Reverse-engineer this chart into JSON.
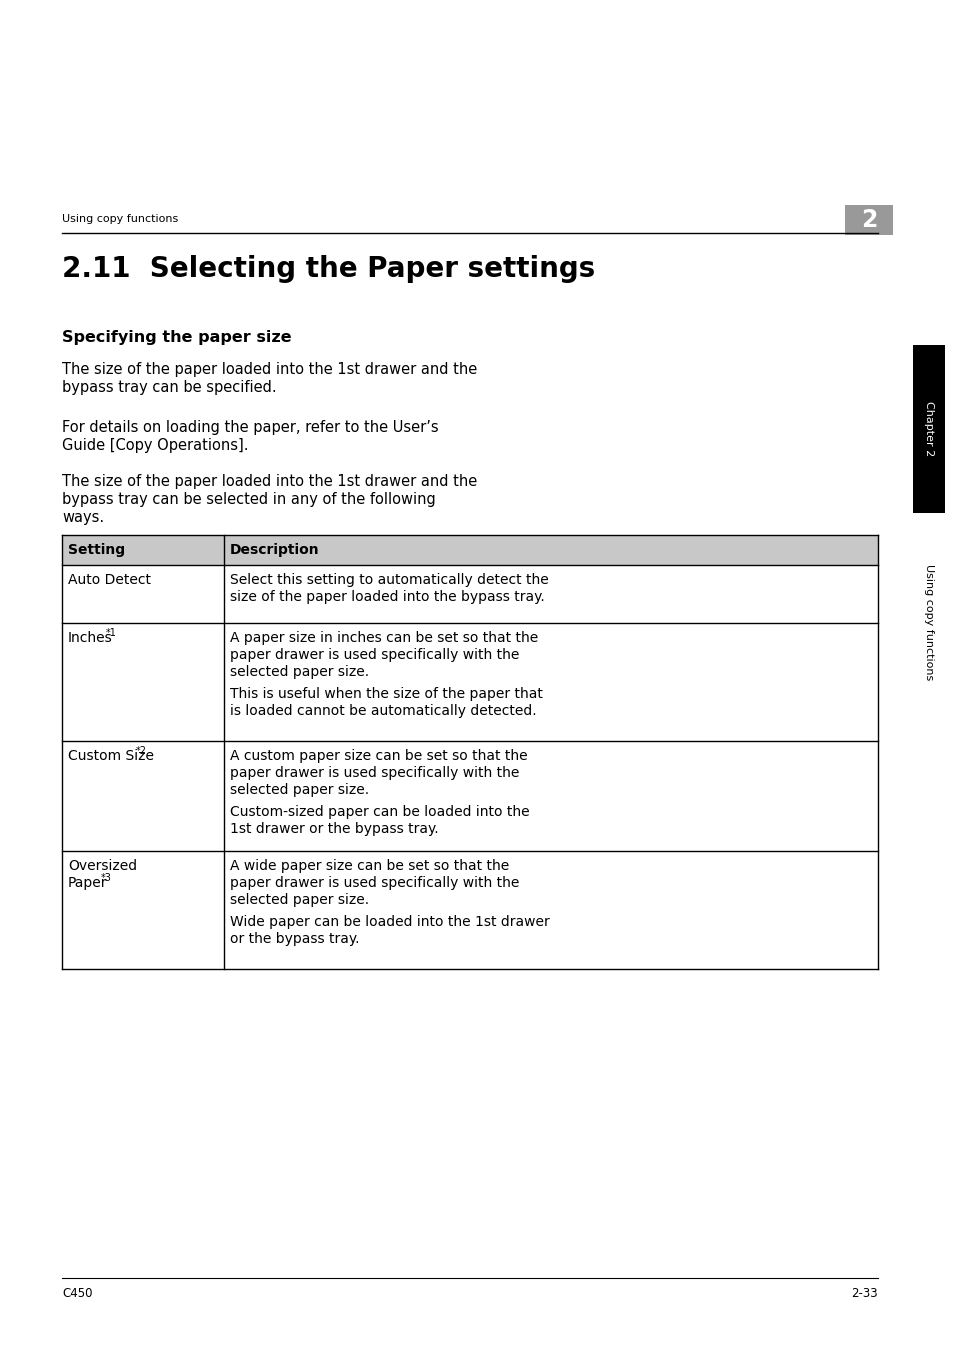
{
  "background_color": "#ffffff",
  "header_text": "Using copy functions",
  "chapter_num": "2",
  "title": "2.11  Selecting the Paper settings",
  "subtitle": "Specifying the paper size",
  "para1_line1": "The size of the paper loaded into the 1st drawer and the",
  "para1_line2": "bypass tray can be specified.",
  "para2_line1": "For details on loading the paper, refer to the User’s",
  "para2_line2": "Guide [Copy Operations].",
  "para3_line1": "The size of the paper loaded into the 1st drawer and the",
  "para3_line2": "bypass tray can be selected in any of the following",
  "para3_line3": "ways.",
  "footer_left": "C450",
  "footer_right": "2-33",
  "table_col1_header": "Setting",
  "table_col2_header": "Description",
  "row1_setting": "Auto Detect",
  "row1_sup": "",
  "row1_desc1": "Select this setting to automatically detect the",
  "row1_desc2": "size of the paper loaded into the bypass tray.",
  "row2_setting": "Inches",
  "row2_sup": "*1",
  "row2_desc1": "A paper size in inches can be set so that the",
  "row2_desc2": "paper drawer is used specifically with the",
  "row2_desc3": "selected paper size.",
  "row2_desc4": "This is useful when the size of the paper that",
  "row2_desc5": "is loaded cannot be automatically detected.",
  "row3_setting": "Custom Size",
  "row3_sup": "*2",
  "row3_desc1": "A custom paper size can be set so that the",
  "row3_desc2": "paper drawer is used specifically with the",
  "row3_desc3": "selected paper size.",
  "row3_desc4": "Custom-sized paper can be loaded into the",
  "row3_desc5": "1st drawer or the bypass tray.",
  "row4_setting1": "Oversized",
  "row4_setting2": "Paper",
  "row4_sup": "*3",
  "row4_desc1": "A wide paper size can be set so that the",
  "row4_desc2": "paper drawer is used specifically with the",
  "row4_desc3": "selected paper size.",
  "row4_desc4": "Wide paper can be loaded into the 1st drawer",
  "row4_desc5": "or the bypass tray.",
  "table_header_bg": "#c8c8c8",
  "table_border_color": "#000000",
  "sidebar_bg": "#000000",
  "chapter_tab_bg": "#999999"
}
